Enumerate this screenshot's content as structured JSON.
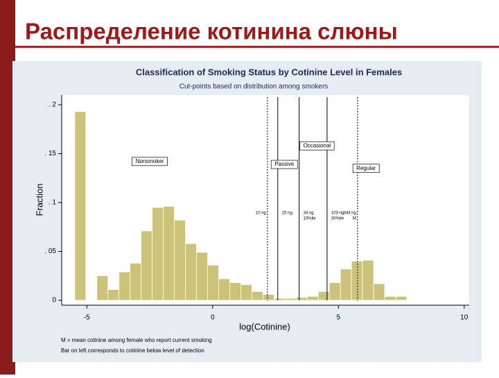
{
  "slide_title": "Распределение котинина слюны",
  "chart_data": {
    "type": "histogram",
    "title": "Classification of Smoking Status by Cotinine Level in Females",
    "subtitle": "Cut-points based on distribution among smokers",
    "xlabel": "log(Cotinine)",
    "ylabel": "Fraction",
    "color": "#cbc27c",
    "bins": [
      -5.48,
      -5.04,
      -4.6,
      -4.16,
      -3.72,
      -3.28,
      -2.84,
      -2.4,
      -1.96,
      -1.52,
      -1.08,
      -0.64,
      -0.2,
      0.24,
      0.68,
      1.12,
      1.56,
      2,
      2.44,
      2.88,
      3.32,
      3.76,
      4.2,
      4.64,
      5.08,
      5.52,
      5.96,
      6.4,
      6.84,
      7.28,
      7.72
    ],
    "counts": [
      0.193,
      0,
      0.025,
      0.011,
      0.029,
      0.038,
      0.071,
      0.095,
      0.096,
      0.082,
      0.058,
      0.049,
      0.036,
      0.022,
      0.018,
      0.016,
      0.009,
      0.006,
      0.002,
      0.002,
      0.003,
      0.004,
      0.009,
      0.018,
      0.032,
      0.04,
      0.041,
      0.017,
      0.004,
      0.004
    ],
    "xlim": [
      -6,
      10.2
    ],
    "ylim": [
      -0.005,
      0.21
    ],
    "xticks": [
      -5,
      0,
      5,
      10
    ],
    "yticks": [
      0,
      {
        "value": 0.05,
        "label": ". 05"
      },
      {
        "value": 0.1,
        "label": ". 1"
      },
      {
        "value": 0.15,
        "label": ". 15"
      },
      {
        "value": 0.2,
        "label": ". 2"
      }
    ],
    "reference_lines": [
      {
        "x": 2.18,
        "style": "dashed",
        "label": [
          "10 ng"
        ]
      },
      {
        "x": 2.59,
        "style": "solid",
        "label": [
          "15 ng"
        ]
      },
      {
        "x": 3.44,
        "style": "solid",
        "label": [
          "34 ng",
          "10%ile"
        ]
      },
      {
        "x": 4.55,
        "style": "solid",
        "label": [
          "103 ng",
          "30%ile"
        ]
      },
      {
        "x": 5.76,
        "style": "dashed",
        "label": [
          "344 ng",
          "M"
        ]
      }
    ],
    "annotations": [
      {
        "text": "Nonsmoker",
        "x": -2.5,
        "y": 0.142
      },
      {
        "text": "Occasional",
        "x": 4.15,
        "y": 0.158
      },
      {
        "text": "Passive",
        "x": 2.85,
        "y": 0.139
      },
      {
        "text": "Regular",
        "x": 6.1,
        "y": 0.135
      }
    ],
    "footnotes": [
      "M = mean cotinine among female who report current smoking",
      "Bar on left corresponds to cotinine below level of detection"
    ]
  }
}
